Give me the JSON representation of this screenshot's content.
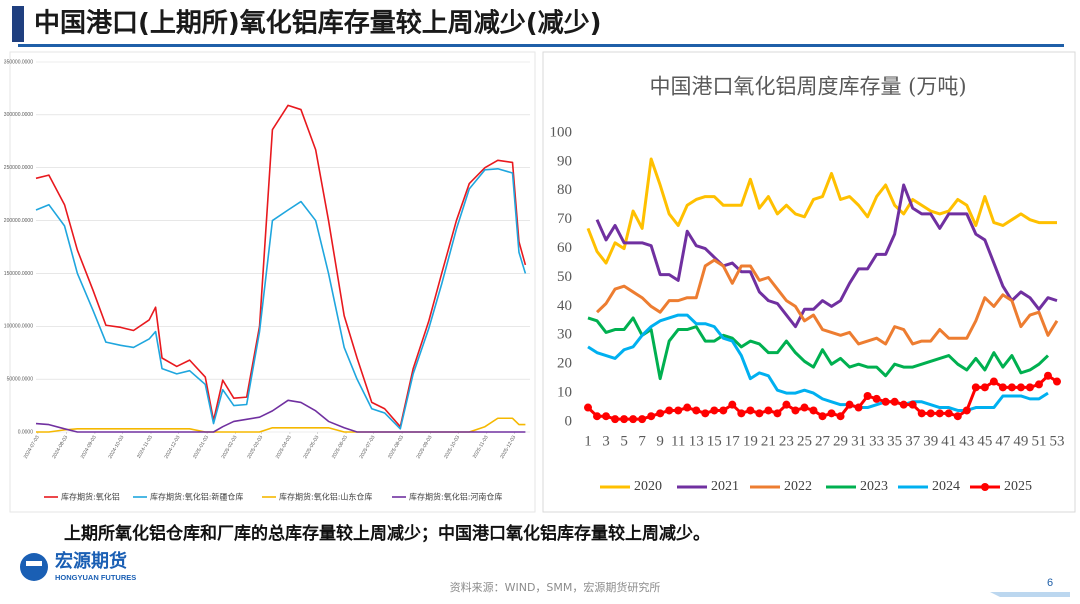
{
  "slide_title": "中国港口(上期所)氧化铝库存量较上周减少(减少)",
  "summary": "上期所氧化铝仓库和厂库的总库存量较上周减少；中国港口氧化铝库存量较上周减少。",
  "logo": {
    "name": "宏源期货",
    "english": "HONGYUAN FUTURES"
  },
  "source": "资料来源：WIND，SMM，宏源期货研究所",
  "page_number": "6",
  "chart_data": [
    {
      "type": "line",
      "x": [
        "2024-07-01",
        "2024-07-15",
        "2024-08-01",
        "2024-08-15",
        "2024-09-01",
        "2024-09-15",
        "2024-10-01",
        "2024-10-15",
        "2024-11-01",
        "2024-11-08",
        "2024-11-15",
        "2024-12-01",
        "2024-12-15",
        "2025-01-01",
        "2025-01-10",
        "2025-01-20",
        "2025-02-01",
        "2025-02-15",
        "2025-03-01",
        "2025-03-15",
        "2025-04-01",
        "2025-04-15",
        "2025-05-01",
        "2025-05-15",
        "2025-06-01",
        "2025-06-15",
        "2025-07-01",
        "2025-07-15",
        "2025-08-01",
        "2025-08-15",
        "2025-09-01",
        "2025-09-15",
        "2025-10-01",
        "2025-10-15",
        "2025-11-01",
        "2025-11-15",
        "2025-12-01",
        "2025-12-08",
        "2025-12-15"
      ],
      "xlim": [
        "2024-07-01",
        "2025-12-20"
      ],
      "xticks": [
        "2024-07-03",
        "2024-08-03",
        "2024-09-03",
        "2024-10-03",
        "2024-11-03",
        "2024-12-03",
        "2025-01-03",
        "2025-02-03",
        "2025-03-03",
        "2025-04-03",
        "2025-05-03",
        "2025-06-03",
        "2025-07-03",
        "2025-08-03",
        "2025-09-03",
        "2025-10-03",
        "2025-11-03",
        "2025-12-03"
      ],
      "ylim": [
        0,
        350000
      ],
      "yticks": [
        {
          "value": 0,
          "label": "0.0000"
        },
        {
          "value": 50000,
          "label": "50000.0000"
        },
        {
          "value": 100000,
          "label": "100000.0000"
        },
        {
          "value": 150000,
          "label": "150000.0000"
        },
        {
          "value": 200000,
          "label": "200000.0000"
        },
        {
          "value": 250000,
          "label": "250000.0000"
        },
        {
          "value": 300000,
          "label": "300000.0000"
        },
        {
          "value": 350000,
          "label": "350000.0000"
        }
      ],
      "grid": true,
      "series": [
        {
          "name": "库存期货:氧化铝",
          "color": "#e8191e",
          "values": [
            240000,
            243000,
            215000,
            172000,
            134000,
            101000,
            99000,
            96000,
            106000,
            118000,
            70000,
            62000,
            68000,
            52000,
            11000,
            49000,
            32000,
            33000,
            100000,
            286000,
            309000,
            305000,
            267000,
            200000,
            110000,
            70000,
            28000,
            22000,
            5000,
            60000,
            105000,
            150000,
            200000,
            235000,
            250000,
            257000,
            255000,
            180000,
            158000
          ]
        },
        {
          "name": "库存期货:氧化铝:新疆仓库",
          "color": "#1fa6de",
          "values": [
            210000,
            215000,
            195000,
            150000,
            115000,
            85000,
            82000,
            80000,
            88000,
            95000,
            60000,
            55000,
            58000,
            45000,
            8000,
            40000,
            25000,
            26000,
            95000,
            200000,
            210000,
            218000,
            200000,
            150000,
            80000,
            50000,
            22000,
            18000,
            3000,
            55000,
            98000,
            140000,
            192000,
            230000,
            248000,
            249000,
            245000,
            170000,
            150000
          ]
        },
        {
          "name": "库存期货:氧化铝:山东仓库",
          "color": "#f5b800",
          "values": [
            0,
            0,
            2000,
            3000,
            3000,
            3000,
            3000,
            3000,
            3000,
            3000,
            3000,
            3000,
            3000,
            0,
            0,
            0,
            0,
            0,
            0,
            4000,
            4000,
            4000,
            4000,
            4000,
            0,
            0,
            0,
            0,
            0,
            0,
            0,
            0,
            0,
            0,
            5000,
            13000,
            13000,
            7000,
            7000
          ]
        },
        {
          "name": "库存期货:氧化铝:河南仓库",
          "color": "#7030a0",
          "values": [
            8000,
            7000,
            3000,
            0,
            0,
            0,
            0,
            0,
            0,
            0,
            0,
            0,
            0,
            0,
            0,
            5000,
            10000,
            12000,
            14000,
            20000,
            30000,
            28000,
            20000,
            10000,
            4000,
            0,
            0,
            0,
            0,
            0,
            0,
            0,
            0,
            0,
            0,
            0,
            0,
            0,
            0
          ]
        }
      ]
    },
    {
      "type": "line",
      "title": "中国港口氧化铝周度库存量 (万吨)",
      "x": [
        1,
        2,
        3,
        4,
        5,
        6,
        7,
        8,
        9,
        10,
        11,
        12,
        13,
        14,
        15,
        16,
        17,
        18,
        19,
        20,
        21,
        22,
        23,
        24,
        25,
        26,
        27,
        28,
        29,
        30,
        31,
        32,
        33,
        34,
        35,
        36,
        37,
        38,
        39,
        40,
        41,
        42,
        43,
        44,
        45,
        46,
        47,
        48,
        49,
        50,
        51,
        52,
        53
      ],
      "xlim": [
        1,
        53
      ],
      "xticks": [
        1,
        3,
        5,
        7,
        9,
        11,
        13,
        15,
        17,
        19,
        21,
        23,
        25,
        27,
        29,
        31,
        33,
        35,
        37,
        39,
        41,
        43,
        45,
        47,
        49,
        51,
        53
      ],
      "ylim": [
        0,
        100
      ],
      "yticks": [
        0,
        10,
        20,
        30,
        40,
        50,
        60,
        70,
        80,
        90,
        100
      ],
      "grid": false,
      "series": [
        {
          "name": "2020",
          "color": "#ffc000",
          "values": [
            67,
            59,
            55,
            62,
            60,
            73,
            67,
            91,
            82,
            72,
            68,
            75,
            77,
            78,
            78,
            75,
            75,
            75,
            84,
            74,
            78,
            72,
            75,
            72,
            71,
            77,
            78,
            86,
            77,
            78,
            75,
            71,
            78,
            82,
            75,
            72,
            77,
            75,
            73,
            72,
            73,
            77,
            75,
            68,
            78,
            69,
            68,
            70,
            72,
            70,
            69,
            69,
            69
          ]
        },
        {
          "name": "2021",
          "color": "#7030a0",
          "values": [
            null,
            70,
            63,
            68,
            62,
            62,
            62,
            61,
            51,
            51,
            49,
            66,
            61,
            60,
            57,
            54,
            55,
            52,
            52,
            45,
            42,
            41,
            37,
            33,
            39,
            39,
            42,
            40,
            42,
            48,
            53,
            53,
            58,
            58,
            65,
            82,
            74,
            72,
            72,
            67,
            72,
            72,
            72,
            65,
            63,
            55,
            47,
            42,
            45,
            43,
            39,
            43,
            42
          ]
        },
        {
          "name": "2022",
          "color": "#ed7d31",
          "values": [
            null,
            38,
            41,
            46,
            47,
            45,
            43,
            40,
            38,
            42,
            42,
            43,
            43,
            54,
            56,
            54,
            48,
            54,
            54,
            49,
            50,
            46,
            42,
            40,
            35,
            37,
            32,
            31,
            30,
            31,
            27,
            28,
            29,
            27,
            33,
            32,
            27,
            28,
            28,
            32,
            29,
            29,
            29,
            35,
            43,
            40,
            44,
            42,
            33,
            37,
            38,
            30,
            35
          ]
        },
        {
          "name": "2023",
          "color": "#00b050",
          "values": [
            36,
            35,
            31,
            32,
            32,
            36,
            30,
            32,
            15,
            28,
            32,
            32,
            33,
            28,
            28,
            30,
            29,
            26,
            28,
            27,
            24,
            24,
            28,
            24,
            21,
            19,
            25,
            20,
            22,
            19,
            20,
            19,
            19,
            16,
            20,
            19,
            19,
            20,
            21,
            22,
            23,
            20,
            18,
            22,
            18,
            24,
            19,
            23,
            17,
            18,
            20,
            23,
            null
          ]
        },
        {
          "name": "2024",
          "color": "#00b0f0",
          "values": [
            26,
            24,
            23,
            22,
            25,
            26,
            30,
            33,
            35,
            36,
            37,
            37,
            34,
            34,
            33,
            29,
            28,
            23,
            15,
            17,
            16,
            11,
            10,
            10,
            11,
            10,
            8,
            7,
            6,
            6,
            5,
            5,
            6,
            7,
            7,
            6,
            7,
            7,
            6,
            5,
            5,
            4,
            4,
            5,
            5,
            5,
            9,
            9,
            9,
            8,
            8,
            10,
            null
          ]
        },
        {
          "name": "2025",
          "color": "#ff0000",
          "markers": true,
          "values": [
            5,
            2,
            2,
            1,
            1,
            1,
            1,
            2,
            3,
            4,
            4,
            5,
            4,
            3,
            4,
            4,
            6,
            3,
            4,
            3,
            4,
            3,
            6,
            4,
            5,
            4,
            2,
            3,
            2,
            6,
            5,
            9,
            8,
            7,
            7,
            6,
            6,
            3,
            3,
            3,
            3,
            2,
            4,
            12,
            12,
            14,
            12,
            12,
            12,
            12,
            13,
            16,
            14
          ]
        }
      ]
    }
  ]
}
